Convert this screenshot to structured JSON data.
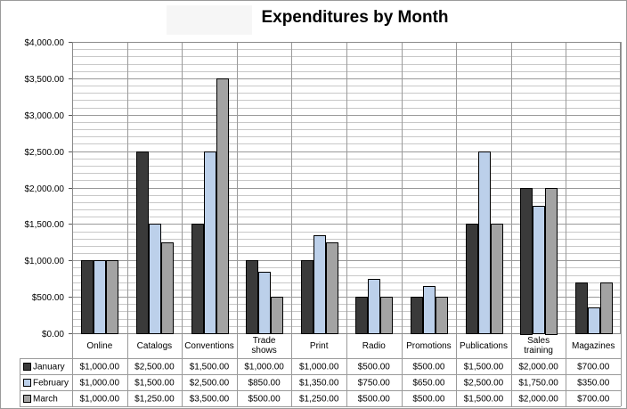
{
  "chart_data": {
    "type": "bar",
    "title": "Expenditures by Month",
    "categories": [
      "Online",
      "Catalogs",
      "Conventions",
      "Trade shows",
      "Print",
      "Radio",
      "Promotions",
      "Publications",
      "Sales training",
      "Magazines"
    ],
    "category_lines": [
      [
        "Online"
      ],
      [
        "Catalogs"
      ],
      [
        "Conventions"
      ],
      [
        "Trade",
        "shows"
      ],
      [
        "Print"
      ],
      [
        "Radio"
      ],
      [
        "Promotions"
      ],
      [
        "Publications"
      ],
      [
        "Sales",
        "training"
      ],
      [
        "Magazines"
      ]
    ],
    "series": [
      {
        "name": "January",
        "color": "#3a3a3a",
        "values": [
          1000,
          2500,
          1500,
          1000,
          1000,
          500,
          500,
          1500,
          2000,
          700
        ],
        "labels": [
          "$1,000.00",
          "$2,500.00",
          "$1,500.00",
          "$1,000.00",
          "$1,000.00",
          "$500.00",
          "$500.00",
          "$1,500.00",
          "$2,000.00",
          "$700.00"
        ]
      },
      {
        "name": "February",
        "color": "#bcd0ea",
        "values": [
          1000,
          1500,
          2500,
          850,
          1350,
          750,
          650,
          2500,
          1750,
          350
        ],
        "labels": [
          "$1,000.00",
          "$1,500.00",
          "$2,500.00",
          "$850.00",
          "$1,350.00",
          "$750.00",
          "$650.00",
          "$2,500.00",
          "$1,750.00",
          "$350.00"
        ]
      },
      {
        "name": "March",
        "color": "#a3a3a3",
        "values": [
          1000,
          1250,
          3500,
          500,
          1250,
          500,
          500,
          1500,
          2000,
          700
        ],
        "labels": [
          "$1,000.00",
          "$1,250.00",
          "$3,500.00",
          "$500.00",
          "$1,250.00",
          "$500.00",
          "$500.00",
          "$1,500.00",
          "$2,000.00",
          "$700.00"
        ]
      }
    ],
    "ylim": [
      0,
      4000
    ],
    "y_ticks": [
      0,
      500,
      1000,
      1500,
      2000,
      2500,
      3000,
      3500,
      4000
    ],
    "y_tick_labels": [
      "$0.00",
      "$500.00",
      "$1,000.00",
      "$1,500.00",
      "$2,000.00",
      "$2,500.00",
      "$3,000.00",
      "$3,500.00",
      "$4,000.00"
    ],
    "minor_grid_step": 100,
    "grid": true,
    "legend": "data-table",
    "xlabel": "",
    "ylabel": ""
  }
}
